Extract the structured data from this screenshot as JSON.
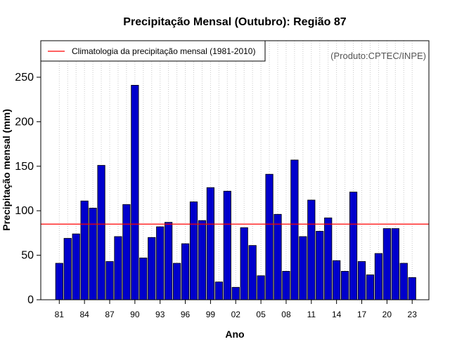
{
  "chart_data": {
    "type": "bar",
    "title": "Precipitação Mensal (Outubro): Região 87",
    "xlabel": "Ano",
    "ylabel": "Precipitação mensal (mm)",
    "credit": "(Produto:CPTEC/INPE)",
    "ylim": [
      0,
      280
    ],
    "yticks": [
      0,
      50,
      100,
      150,
      200,
      250
    ],
    "x_tick_labels": [
      "81",
      "84",
      "87",
      "90",
      "93",
      "96",
      "99",
      "02",
      "05",
      "08",
      "11",
      "14",
      "17",
      "20",
      "23"
    ],
    "categories": [
      "1981",
      "1982",
      "1983",
      "1984",
      "1985",
      "1986",
      "1987",
      "1988",
      "1989",
      "1990",
      "1991",
      "1992",
      "1993",
      "1994",
      "1995",
      "1996",
      "1997",
      "1998",
      "1999",
      "2000",
      "2001",
      "2002",
      "2003",
      "2004",
      "2005",
      "2006",
      "2007",
      "2008",
      "2009",
      "2010",
      "2011",
      "2012",
      "2013",
      "2014",
      "2015",
      "2016",
      "2017",
      "2018",
      "2019",
      "2020",
      "2021",
      "2022",
      "2023"
    ],
    "values": [
      41,
      69,
      74,
      111,
      103,
      151,
      43,
      71,
      107,
      241,
      47,
      70,
      82,
      87,
      41,
      63,
      110,
      89,
      126,
      20,
      122,
      14,
      81,
      61,
      27,
      141,
      96,
      32,
      157,
      71,
      112,
      77,
      92,
      44,
      32,
      121,
      43,
      28,
      52,
      80,
      80,
      41,
      25
    ],
    "bar_color": "#0000cc",
    "grid": "vertical dotted",
    "reference_line": {
      "label": "Climatologia da precipitação mensal (1981-2010)",
      "value": 85,
      "color": "#ff0000"
    },
    "legend_position": "top-left"
  }
}
